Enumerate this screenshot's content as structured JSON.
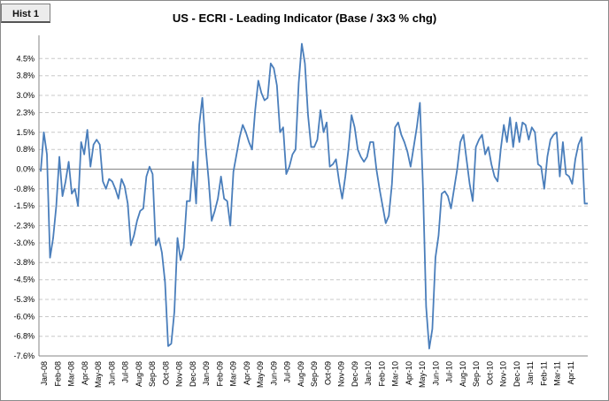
{
  "tab": {
    "label": "Hist 1"
  },
  "colors": {
    "line": "#4a7ebb",
    "grid": "#c8c8c8",
    "axis": "#868686"
  },
  "chart_data": {
    "type": "line",
    "title": "US - ECRI - Leading Indicator (Base / 3x3 % chg)",
    "xlabel": "",
    "ylabel": "",
    "ylim": [
      -7.6,
      5.3
    ],
    "grid": true,
    "y_ticks": [
      4.5,
      3.8,
      3.0,
      2.3,
      1.5,
      0.8,
      0.0,
      -0.8,
      -1.5,
      -2.3,
      -3.0,
      -3.8,
      -4.5,
      -5.3,
      -6.0,
      -6.8,
      -7.6
    ],
    "y_tick_labels": [
      "4.5%",
      "3.8%",
      "3.0%",
      "2.3%",
      "1.5%",
      "0.8%",
      "0.0%",
      "-0.8%",
      "-1.5%",
      "-2.3%",
      "-3.0%",
      "-3.8%",
      "-4.5%",
      "-5.3%",
      "-6.0%",
      "-6.8%",
      "-7.6%"
    ],
    "x_tick_labels": [
      "Jan-08",
      "Feb-08",
      "Mar-08",
      "Apr-08",
      "May-08",
      "Jun-08",
      "Jul-08",
      "Aug-08",
      "Sep-08",
      "Oct-08",
      "Nov-08",
      "Dec-08",
      "Jan-09",
      "Feb-09",
      "Mar-09",
      "Apr-09",
      "May-09",
      "Jun-09",
      "Jul-09",
      "Aug-09",
      "Sep-09",
      "Oct-09",
      "Nov-09",
      "Dec-09",
      "Jan-10",
      "Feb-10",
      "Mar-10",
      "Apr-10",
      "May-10",
      "Jun-10",
      "Jul-10",
      "Aug-10",
      "Sep-10",
      "Oct-10",
      "Nov-10",
      "Dec-10",
      "Jan-11",
      "Feb-11",
      "Mar-11",
      "Apr-11"
    ],
    "series": [
      {
        "name": "US - ECRI - Leading Indicator",
        "values": [
          -0.1,
          1.5,
          0.6,
          -3.6,
          -2.8,
          -1.5,
          0.5,
          -1.1,
          -0.5,
          0.3,
          -1.0,
          -0.8,
          -1.5,
          1.1,
          0.6,
          1.6,
          0.1,
          1.0,
          1.2,
          1.0,
          -0.5,
          -0.8,
          -0.4,
          -0.5,
          -0.8,
          -1.2,
          -0.4,
          -0.7,
          -1.4,
          -3.1,
          -2.7,
          -2.1,
          -1.7,
          -1.6,
          -0.3,
          0.1,
          -0.2,
          -3.1,
          -2.8,
          -3.4,
          -4.6,
          -7.2,
          -7.1,
          -5.8,
          -2.8,
          -3.7,
          -3.2,
          -1.3,
          -1.3,
          0.3,
          -1.4,
          1.8,
          2.9,
          1.0,
          -0.4,
          -2.1,
          -1.7,
          -1.2,
          -0.3,
          -1.2,
          -1.3,
          -2.3,
          -0.1,
          0.6,
          1.3,
          1.8,
          1.5,
          1.1,
          0.8,
          2.4,
          3.6,
          3.1,
          2.8,
          2.9,
          4.3,
          4.1,
          3.4,
          1.5,
          1.7,
          -0.2,
          0.1,
          0.6,
          0.8,
          3.5,
          5.1,
          4.3,
          2.2,
          0.9,
          0.9,
          1.2,
          2.4,
          1.5,
          1.9,
          0.1,
          0.2,
          0.4,
          -0.5,
          -1.2,
          -0.3,
          0.8,
          2.2,
          1.7,
          0.8,
          0.5,
          0.3,
          0.5,
          1.1,
          1.1,
          0.0,
          -0.8,
          -1.5,
          -2.2,
          -1.9,
          -0.6,
          1.7,
          1.9,
          1.4,
          1.1,
          0.7,
          0.1,
          0.9,
          1.7,
          2.7,
          -0.8,
          -5.6,
          -7.3,
          -6.5,
          -3.6,
          -2.7,
          -1.0,
          -0.9,
          -1.1,
          -1.6,
          -0.8,
          0.0,
          1.1,
          1.4,
          0.4,
          -0.6,
          -1.3,
          0.9,
          1.2,
          1.4,
          0.6,
          0.9,
          0.2,
          -0.3,
          -0.5,
          0.8,
          1.8,
          1.1,
          2.1,
          0.9,
          1.9,
          1.1,
          1.9,
          1.8,
          1.2,
          1.7,
          1.5,
          0.2,
          0.1,
          -0.8,
          0.5,
          1.2,
          1.4,
          1.5,
          -0.3,
          1.1,
          -0.2,
          -0.3,
          -0.6,
          0.4,
          1.0,
          1.3,
          -1.4,
          -1.4
        ]
      }
    ]
  }
}
